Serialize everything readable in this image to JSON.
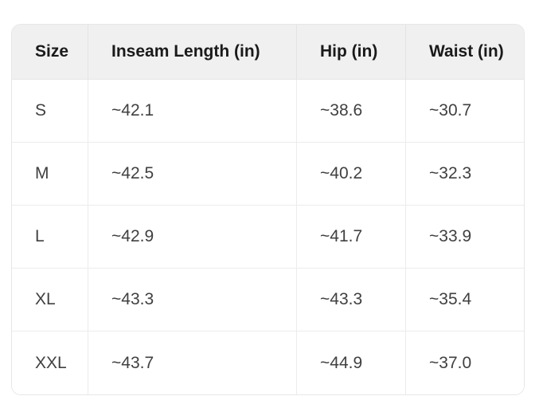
{
  "table": {
    "name": "size-chart",
    "columns": [
      "Size",
      "Inseam Length (in)",
      "Hip (in)",
      "Waist (in)"
    ],
    "rows": [
      [
        "S",
        "~42.1",
        "~38.6",
        "~30.7"
      ],
      [
        "M",
        "~42.5",
        "~40.2",
        "~32.3"
      ],
      [
        "L",
        "~42.9",
        "~41.7",
        "~33.9"
      ],
      [
        "XL",
        "~43.3",
        "~43.3",
        "~35.4"
      ],
      [
        "XXL",
        "~43.7",
        "~44.9",
        "~37.0"
      ]
    ]
  },
  "colors": {
    "page_bg": "#ffffff",
    "header_bg": "#f0f0f0",
    "row_bg": "#ffffff",
    "card_border": "#e7e7e7",
    "divider": "#ececec",
    "header_text": "#1a1a1a",
    "body_text": "#404040"
  }
}
